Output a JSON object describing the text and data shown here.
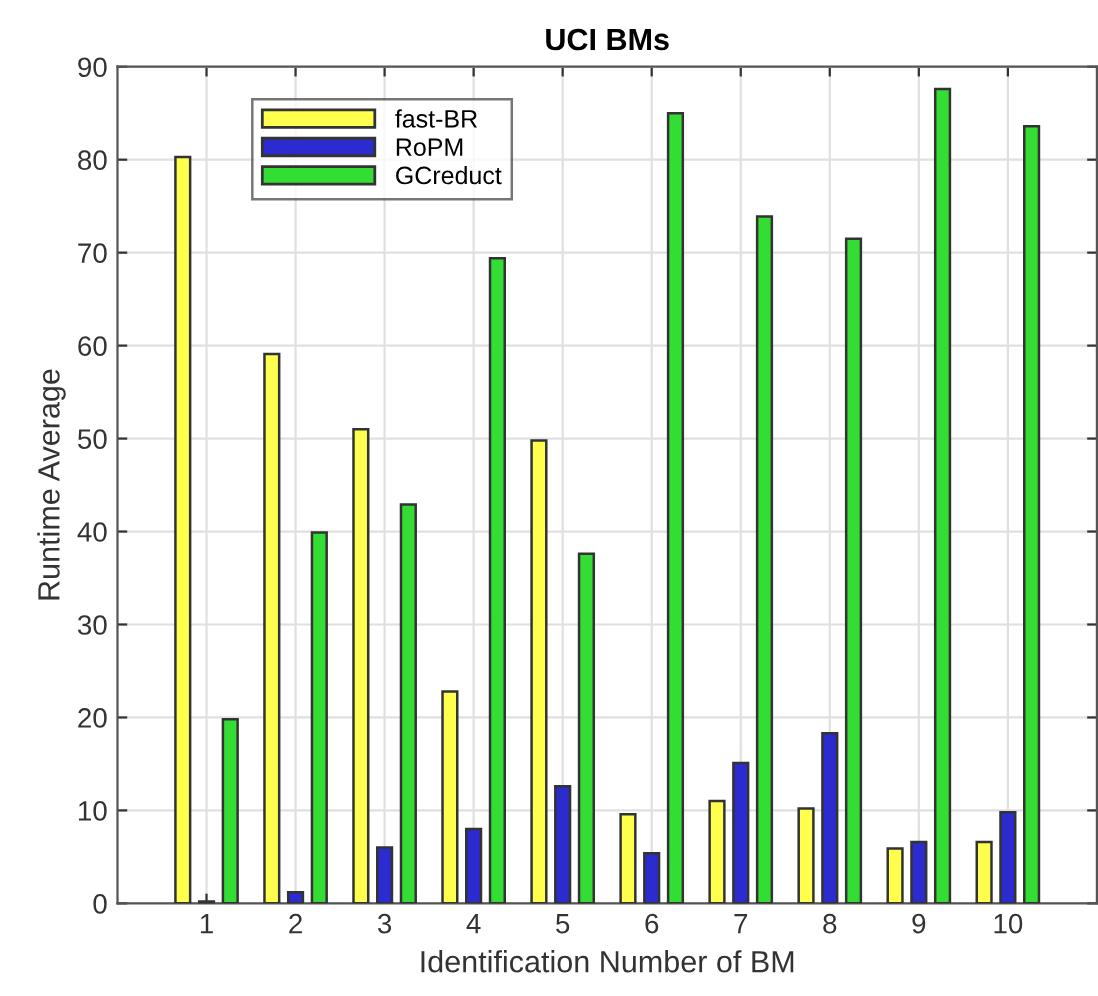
{
  "chart_data": {
    "type": "bar",
    "title": "UCI BMs",
    "xlabel": "Identification Number of BM",
    "ylabel": "Runtime Average",
    "x": [
      1,
      2,
      3,
      4,
      5,
      6,
      7,
      8,
      9,
      10
    ],
    "xlim": [
      0,
      11
    ],
    "xticks": [
      1,
      2,
      3,
      4,
      5,
      6,
      7,
      8,
      9,
      10
    ],
    "ylim": [
      0,
      90
    ],
    "yticks": [
      0,
      10,
      20,
      30,
      40,
      50,
      60,
      70,
      80,
      90
    ],
    "grid": true,
    "legend": "top left",
    "series": [
      {
        "name": "fast-BR",
        "color": "#ffff4d",
        "values": [
          80.3,
          59.1,
          51.0,
          22.8,
          49.8,
          9.6,
          11.0,
          10.2,
          5.9,
          6.6
        ]
      },
      {
        "name": "RoPM",
        "color": "#2b2bd0",
        "values": [
          0.2,
          1.2,
          6.0,
          8.0,
          12.6,
          5.4,
          15.1,
          18.3,
          6.6,
          9.8
        ]
      },
      {
        "name": "GCreduct",
        "color": "#33dd33",
        "values": [
          19.8,
          39.9,
          42.9,
          69.4,
          37.6,
          85.0,
          73.9,
          71.5,
          87.6,
          83.6
        ]
      }
    ]
  }
}
